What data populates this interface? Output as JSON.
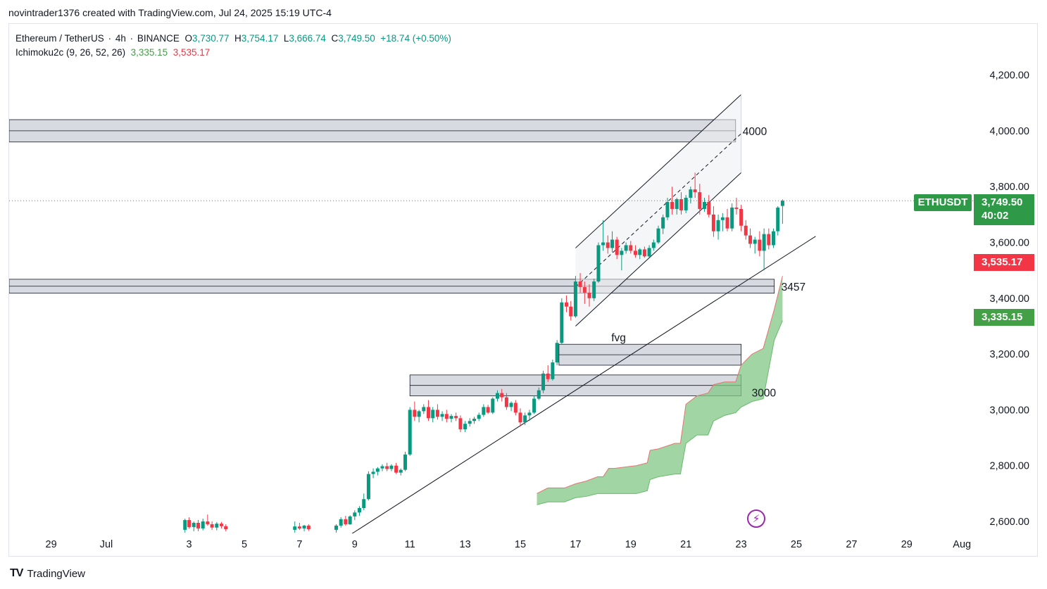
{
  "header": {
    "attribution": "novintrader1376 created with TradingView.com, Jul 24, 2025 15:19 UTC-4"
  },
  "legend": {
    "symbol": "Ethereum / TetherUS",
    "interval": "4h",
    "exchange": "BINANCE",
    "open_label": "O",
    "open": "3,730.77",
    "high_label": "H",
    "high": "3,754.17",
    "low_label": "L",
    "low": "3,666.74",
    "close_label": "C",
    "close": "3,749.50",
    "change": "+18.74 (+0.50%)",
    "indicator": "Ichimoku2c (9, 26, 52, 26)",
    "ind_v1": "3,335.15",
    "ind_v2": "3,535.17"
  },
  "tags": {
    "ticker": "ETHUSDT",
    "price": "3,749.50",
    "countdown": "40:02",
    "cloud_top": "3,535.17",
    "cloud_bottom": "3,335.15"
  },
  "footer": {
    "brand": "TradingView"
  },
  "colors": {
    "up": "#089981",
    "down": "#f23645",
    "cloud": "#81c784",
    "zone": "#d1d4dc"
  },
  "chart_data": {
    "type": "candlestick",
    "interval": "4h",
    "y_axis": {
      "ticks": [
        "4,200.00",
        "4,000.00",
        "3,800.00",
        "3,600.00",
        "3,400.00",
        "3,200.00",
        "3,000.00",
        "2,800.00",
        "2,600.00"
      ],
      "tick_values": [
        4200,
        4000,
        3800,
        3600,
        3400,
        3200,
        3000,
        2800,
        2600
      ]
    },
    "x_axis": {
      "ticks": [
        "29",
        "Jul",
        "3",
        "5",
        "7",
        "9",
        "11",
        "13",
        "15",
        "17",
        "19",
        "21",
        "23",
        "25",
        "27",
        "29",
        "Aug"
      ],
      "tick_days": [
        -2,
        0,
        3,
        5,
        7,
        9,
        11,
        13,
        15,
        17,
        19,
        21,
        23,
        25,
        27,
        29,
        31
      ]
    },
    "last_price": 3749.5,
    "zones": [
      {
        "label": "4000",
        "low": 3960,
        "high": 4040,
        "from_day": -6.5,
        "to_day": 22.8
      },
      {
        "label": "3457",
        "low": 3418,
        "high": 3468,
        "from_day": -6.5,
        "to_day": 24.2
      },
      {
        "label": "fvg",
        "low": 3160,
        "high": 3235,
        "from_day": 16.4,
        "to_day": 23.0
      },
      {
        "label": "3000",
        "low": 3050,
        "high": 3125,
        "from_day": 11.0,
        "to_day": 23.0
      }
    ],
    "trendline": {
      "from": [
        8.8,
        2550
      ],
      "to": [
        25.7,
        3622
      ]
    },
    "channel": {
      "upper": {
        "from": [
          17.0,
          3580
        ],
        "to": [
          23.0,
          4130
        ]
      },
      "middle": {
        "from": [
          17.0,
          3440
        ],
        "to": [
          23.0,
          3990
        ]
      },
      "lower": {
        "from": [
          17.0,
          3300
        ],
        "to": [
          23.0,
          3850
        ]
      }
    },
    "candles": [
      {
        "d": 2.85,
        "o": 2570,
        "h": 2610,
        "l": 2560,
        "c": 2605
      },
      {
        "d": 3.0,
        "o": 2605,
        "h": 2615,
        "l": 2575,
        "c": 2580
      },
      {
        "d": 3.17,
        "o": 2580,
        "h": 2600,
        "l": 2565,
        "c": 2595
      },
      {
        "d": 3.33,
        "o": 2595,
        "h": 2605,
        "l": 2565,
        "c": 2575
      },
      {
        "d": 3.5,
        "o": 2575,
        "h": 2610,
        "l": 2568,
        "c": 2600
      },
      {
        "d": 3.67,
        "o": 2600,
        "h": 2625,
        "l": 2585,
        "c": 2590
      },
      {
        "d": 3.83,
        "o": 2590,
        "h": 2600,
        "l": 2570,
        "c": 2578
      },
      {
        "d": 4.0,
        "o": 2578,
        "h": 2598,
        "l": 2568,
        "c": 2592
      },
      {
        "d": 4.17,
        "o": 2592,
        "h": 2598,
        "l": 2575,
        "c": 2583
      },
      {
        "d": 4.33,
        "o": 2583,
        "h": 2590,
        "l": 2565,
        "c": 2572
      },
      {
        "d": 6.83,
        "o": 2570,
        "h": 2600,
        "l": 2560,
        "c": 2582
      },
      {
        "d": 7.0,
        "o": 2582,
        "h": 2595,
        "l": 2570,
        "c": 2575
      },
      {
        "d": 7.17,
        "o": 2575,
        "h": 2588,
        "l": 2565,
        "c": 2585
      },
      {
        "d": 7.33,
        "o": 2585,
        "h": 2590,
        "l": 2566,
        "c": 2572
      },
      {
        "d": 8.33,
        "o": 2570,
        "h": 2590,
        "l": 2560,
        "c": 2585
      },
      {
        "d": 8.5,
        "o": 2585,
        "h": 2615,
        "l": 2578,
        "c": 2608
      },
      {
        "d": 8.67,
        "o": 2608,
        "h": 2620,
        "l": 2585,
        "c": 2590
      },
      {
        "d": 8.83,
        "o": 2590,
        "h": 2622,
        "l": 2588,
        "c": 2618
      },
      {
        "d": 9.0,
        "o": 2618,
        "h": 2640,
        "l": 2605,
        "c": 2632
      },
      {
        "d": 9.17,
        "o": 2632,
        "h": 2655,
        "l": 2620,
        "c": 2648
      },
      {
        "d": 9.33,
        "o": 2648,
        "h": 2700,
        "l": 2640,
        "c": 2680
      },
      {
        "d": 9.5,
        "o": 2680,
        "h": 2780,
        "l": 2675,
        "c": 2770
      },
      {
        "d": 9.67,
        "o": 2770,
        "h": 2790,
        "l": 2755,
        "c": 2778
      },
      {
        "d": 9.83,
        "o": 2778,
        "h": 2795,
        "l": 2765,
        "c": 2790
      },
      {
        "d": 10.0,
        "o": 2790,
        "h": 2805,
        "l": 2780,
        "c": 2798
      },
      {
        "d": 10.17,
        "o": 2798,
        "h": 2810,
        "l": 2780,
        "c": 2788
      },
      {
        "d": 10.33,
        "o": 2788,
        "h": 2805,
        "l": 2780,
        "c": 2800
      },
      {
        "d": 10.5,
        "o": 2800,
        "h": 2810,
        "l": 2770,
        "c": 2775
      },
      {
        "d": 10.67,
        "o": 2775,
        "h": 2790,
        "l": 2765,
        "c": 2785
      },
      {
        "d": 10.83,
        "o": 2785,
        "h": 2850,
        "l": 2780,
        "c": 2840
      },
      {
        "d": 11.0,
        "o": 2840,
        "h": 3010,
        "l": 2835,
        "c": 3000
      },
      {
        "d": 11.17,
        "o": 3000,
        "h": 3030,
        "l": 2960,
        "c": 2975
      },
      {
        "d": 11.33,
        "o": 2975,
        "h": 3000,
        "l": 2955,
        "c": 2995
      },
      {
        "d": 11.5,
        "o": 2995,
        "h": 3020,
        "l": 2985,
        "c": 3010
      },
      {
        "d": 11.67,
        "o": 3010,
        "h": 3035,
        "l": 2960,
        "c": 2970
      },
      {
        "d": 11.83,
        "o": 2970,
        "h": 3010,
        "l": 2955,
        "c": 3000
      },
      {
        "d": 12.0,
        "o": 3000,
        "h": 3020,
        "l": 2965,
        "c": 2975
      },
      {
        "d": 12.17,
        "o": 2975,
        "h": 2995,
        "l": 2960,
        "c": 2985
      },
      {
        "d": 12.33,
        "o": 2985,
        "h": 3000,
        "l": 2955,
        "c": 2968
      },
      {
        "d": 12.5,
        "o": 2968,
        "h": 2985,
        "l": 2955,
        "c": 2978
      },
      {
        "d": 12.67,
        "o": 2978,
        "h": 2990,
        "l": 2960,
        "c": 2970
      },
      {
        "d": 12.83,
        "o": 2970,
        "h": 2980,
        "l": 2920,
        "c": 2930
      },
      {
        "d": 13.0,
        "o": 2930,
        "h": 2960,
        "l": 2920,
        "c": 2950
      },
      {
        "d": 13.17,
        "o": 2950,
        "h": 2970,
        "l": 2940,
        "c": 2960
      },
      {
        "d": 13.33,
        "o": 2960,
        "h": 2975,
        "l": 2950,
        "c": 2968
      },
      {
        "d": 13.5,
        "o": 2968,
        "h": 2990,
        "l": 2960,
        "c": 2982
      },
      {
        "d": 13.67,
        "o": 2982,
        "h": 3020,
        "l": 2975,
        "c": 3010
      },
      {
        "d": 13.83,
        "o": 3010,
        "h": 3018,
        "l": 2985,
        "c": 2990
      },
      {
        "d": 14.0,
        "o": 2990,
        "h": 3045,
        "l": 2985,
        "c": 3040
      },
      {
        "d": 14.17,
        "o": 3040,
        "h": 3070,
        "l": 3030,
        "c": 3060
      },
      {
        "d": 14.33,
        "o": 3060,
        "h": 3075,
        "l": 3030,
        "c": 3045
      },
      {
        "d": 14.5,
        "o": 3045,
        "h": 3060,
        "l": 3000,
        "c": 3010
      },
      {
        "d": 14.67,
        "o": 3010,
        "h": 3030,
        "l": 2995,
        "c": 3025
      },
      {
        "d": 14.83,
        "o": 3025,
        "h": 3035,
        "l": 2980,
        "c": 2990
      },
      {
        "d": 15.0,
        "o": 2990,
        "h": 3005,
        "l": 2940,
        "c": 2955
      },
      {
        "d": 15.17,
        "o": 2955,
        "h": 2990,
        "l": 2945,
        "c": 2980
      },
      {
        "d": 15.33,
        "o": 2980,
        "h": 3000,
        "l": 2960,
        "c": 2990
      },
      {
        "d": 15.5,
        "o": 2990,
        "h": 3050,
        "l": 2985,
        "c": 3040
      },
      {
        "d": 15.67,
        "o": 3040,
        "h": 3080,
        "l": 3035,
        "c": 3070
      },
      {
        "d": 15.83,
        "o": 3070,
        "h": 3140,
        "l": 3060,
        "c": 3130
      },
      {
        "d": 16.0,
        "o": 3130,
        "h": 3160,
        "l": 3100,
        "c": 3110
      },
      {
        "d": 16.17,
        "o": 3110,
        "h": 3180,
        "l": 3105,
        "c": 3170
      },
      {
        "d": 16.33,
        "o": 3170,
        "h": 3250,
        "l": 3160,
        "c": 3240
      },
      {
        "d": 16.5,
        "o": 3240,
        "h": 3400,
        "l": 3235,
        "c": 3385
      },
      {
        "d": 16.67,
        "o": 3385,
        "h": 3410,
        "l": 3350,
        "c": 3370
      },
      {
        "d": 16.83,
        "o": 3370,
        "h": 3390,
        "l": 3320,
        "c": 3335
      },
      {
        "d": 17.0,
        "o": 3335,
        "h": 3480,
        "l": 3330,
        "c": 3460
      },
      {
        "d": 17.17,
        "o": 3460,
        "h": 3490,
        "l": 3420,
        "c": 3440
      },
      {
        "d": 17.33,
        "o": 3440,
        "h": 3460,
        "l": 3380,
        "c": 3420
      },
      {
        "d": 17.5,
        "o": 3420,
        "h": 3450,
        "l": 3370,
        "c": 3400
      },
      {
        "d": 17.67,
        "o": 3400,
        "h": 3470,
        "l": 3390,
        "c": 3460
      },
      {
        "d": 17.83,
        "o": 3460,
        "h": 3600,
        "l": 3455,
        "c": 3590
      },
      {
        "d": 18.0,
        "o": 3590,
        "h": 3680,
        "l": 3570,
        "c": 3600
      },
      {
        "d": 18.17,
        "o": 3600,
        "h": 3625,
        "l": 3560,
        "c": 3580
      },
      {
        "d": 18.33,
        "o": 3580,
        "h": 3640,
        "l": 3565,
        "c": 3610
      },
      {
        "d": 18.5,
        "o": 3610,
        "h": 3620,
        "l": 3540,
        "c": 3555
      },
      {
        "d": 18.67,
        "o": 3555,
        "h": 3580,
        "l": 3500,
        "c": 3570
      },
      {
        "d": 18.83,
        "o": 3570,
        "h": 3600,
        "l": 3560,
        "c": 3590
      },
      {
        "d": 19.0,
        "o": 3590,
        "h": 3605,
        "l": 3560,
        "c": 3570
      },
      {
        "d": 19.17,
        "o": 3570,
        "h": 3590,
        "l": 3545,
        "c": 3555
      },
      {
        "d": 19.33,
        "o": 3555,
        "h": 3580,
        "l": 3540,
        "c": 3575
      },
      {
        "d": 19.5,
        "o": 3575,
        "h": 3585,
        "l": 3545,
        "c": 3550
      },
      {
        "d": 19.67,
        "o": 3550,
        "h": 3590,
        "l": 3545,
        "c": 3580
      },
      {
        "d": 19.83,
        "o": 3580,
        "h": 3610,
        "l": 3570,
        "c": 3600
      },
      {
        "d": 20.0,
        "o": 3600,
        "h": 3660,
        "l": 3595,
        "c": 3650
      },
      {
        "d": 20.17,
        "o": 3650,
        "h": 3700,
        "l": 3630,
        "c": 3690
      },
      {
        "d": 20.33,
        "o": 3690,
        "h": 3760,
        "l": 3680,
        "c": 3745
      },
      {
        "d": 20.5,
        "o": 3745,
        "h": 3800,
        "l": 3700,
        "c": 3720
      },
      {
        "d": 20.67,
        "o": 3720,
        "h": 3760,
        "l": 3700,
        "c": 3755
      },
      {
        "d": 20.83,
        "o": 3755,
        "h": 3780,
        "l": 3700,
        "c": 3715
      },
      {
        "d": 21.0,
        "o": 3715,
        "h": 3770,
        "l": 3705,
        "c": 3760
      },
      {
        "d": 21.17,
        "o": 3760,
        "h": 3800,
        "l": 3740,
        "c": 3790
      },
      {
        "d": 21.33,
        "o": 3790,
        "h": 3850,
        "l": 3760,
        "c": 3780
      },
      {
        "d": 21.5,
        "o": 3780,
        "h": 3810,
        "l": 3700,
        "c": 3720
      },
      {
        "d": 21.67,
        "o": 3720,
        "h": 3760,
        "l": 3710,
        "c": 3745
      },
      {
        "d": 21.83,
        "o": 3745,
        "h": 3770,
        "l": 3690,
        "c": 3700
      },
      {
        "d": 22.0,
        "o": 3700,
        "h": 3730,
        "l": 3620,
        "c": 3640
      },
      {
        "d": 22.17,
        "o": 3640,
        "h": 3700,
        "l": 3610,
        "c": 3680
      },
      {
        "d": 22.33,
        "o": 3680,
        "h": 3705,
        "l": 3640,
        "c": 3690
      },
      {
        "d": 22.5,
        "o": 3690,
        "h": 3720,
        "l": 3640,
        "c": 3650
      },
      {
        "d": 22.67,
        "o": 3650,
        "h": 3740,
        "l": 3640,
        "c": 3725
      },
      {
        "d": 22.83,
        "o": 3725,
        "h": 3760,
        "l": 3700,
        "c": 3720
      },
      {
        "d": 23.0,
        "o": 3720,
        "h": 3735,
        "l": 3640,
        "c": 3660
      },
      {
        "d": 23.17,
        "o": 3660,
        "h": 3680,
        "l": 3610,
        "c": 3625
      },
      {
        "d": 23.33,
        "o": 3625,
        "h": 3650,
        "l": 3580,
        "c": 3595
      },
      {
        "d": 23.5,
        "o": 3595,
        "h": 3620,
        "l": 3560,
        "c": 3610
      },
      {
        "d": 23.67,
        "o": 3610,
        "h": 3640,
        "l": 3550,
        "c": 3570
      },
      {
        "d": 23.83,
        "o": 3570,
        "h": 3650,
        "l": 3500,
        "c": 3630
      },
      {
        "d": 24.0,
        "o": 3630,
        "h": 3650,
        "l": 3575,
        "c": 3590
      },
      {
        "d": 24.17,
        "o": 3590,
        "h": 3650,
        "l": 3580,
        "c": 3640
      },
      {
        "d": 24.33,
        "o": 3640,
        "h": 3730,
        "l": 3625,
        "c": 3725
      },
      {
        "d": 24.5,
        "o": 3730.77,
        "h": 3754.17,
        "l": 3666.74,
        "c": 3749.5
      }
    ],
    "cloud": {
      "upper": [
        [
          15.6,
          2700
        ],
        [
          16.0,
          2720
        ],
        [
          16.6,
          2720
        ],
        [
          17.0,
          2735
        ],
        [
          17.4,
          2745
        ],
        [
          17.8,
          2760
        ],
        [
          18.0,
          2760
        ],
        [
          18.2,
          2790
        ],
        [
          18.4,
          2790
        ],
        [
          19.2,
          2800
        ],
        [
          19.6,
          2810
        ],
        [
          19.7,
          2855
        ],
        [
          20.0,
          2860
        ],
        [
          20.6,
          2880
        ],
        [
          20.8,
          2880
        ],
        [
          21.0,
          3020
        ],
        [
          21.4,
          3050
        ],
        [
          21.8,
          3060
        ],
        [
          22.0,
          3090
        ],
        [
          22.4,
          3100
        ],
        [
          22.8,
          3100
        ],
        [
          23.0,
          3160
        ],
        [
          23.4,
          3200
        ],
        [
          23.8,
          3220
        ],
        [
          24.2,
          3360
        ],
        [
          24.5,
          3480
        ]
      ],
      "lower": [
        [
          15.6,
          2660
        ],
        [
          16.0,
          2670
        ],
        [
          16.6,
          2670
        ],
        [
          17.0,
          2685
        ],
        [
          17.4,
          2690
        ],
        [
          17.8,
          2700
        ],
        [
          18.0,
          2700
        ],
        [
          18.4,
          2700
        ],
        [
          19.2,
          2700
        ],
        [
          19.6,
          2710
        ],
        [
          19.7,
          2750
        ],
        [
          20.0,
          2760
        ],
        [
          20.6,
          2770
        ],
        [
          20.8,
          2770
        ],
        [
          21.0,
          2880
        ],
        [
          21.4,
          2910
        ],
        [
          21.8,
          2910
        ],
        [
          22.0,
          2960
        ],
        [
          22.4,
          2980
        ],
        [
          22.8,
          2990
        ],
        [
          23.0,
          3010
        ],
        [
          23.4,
          3030
        ],
        [
          23.8,
          3040
        ],
        [
          24.2,
          3250
        ],
        [
          24.5,
          3320
        ]
      ]
    }
  }
}
